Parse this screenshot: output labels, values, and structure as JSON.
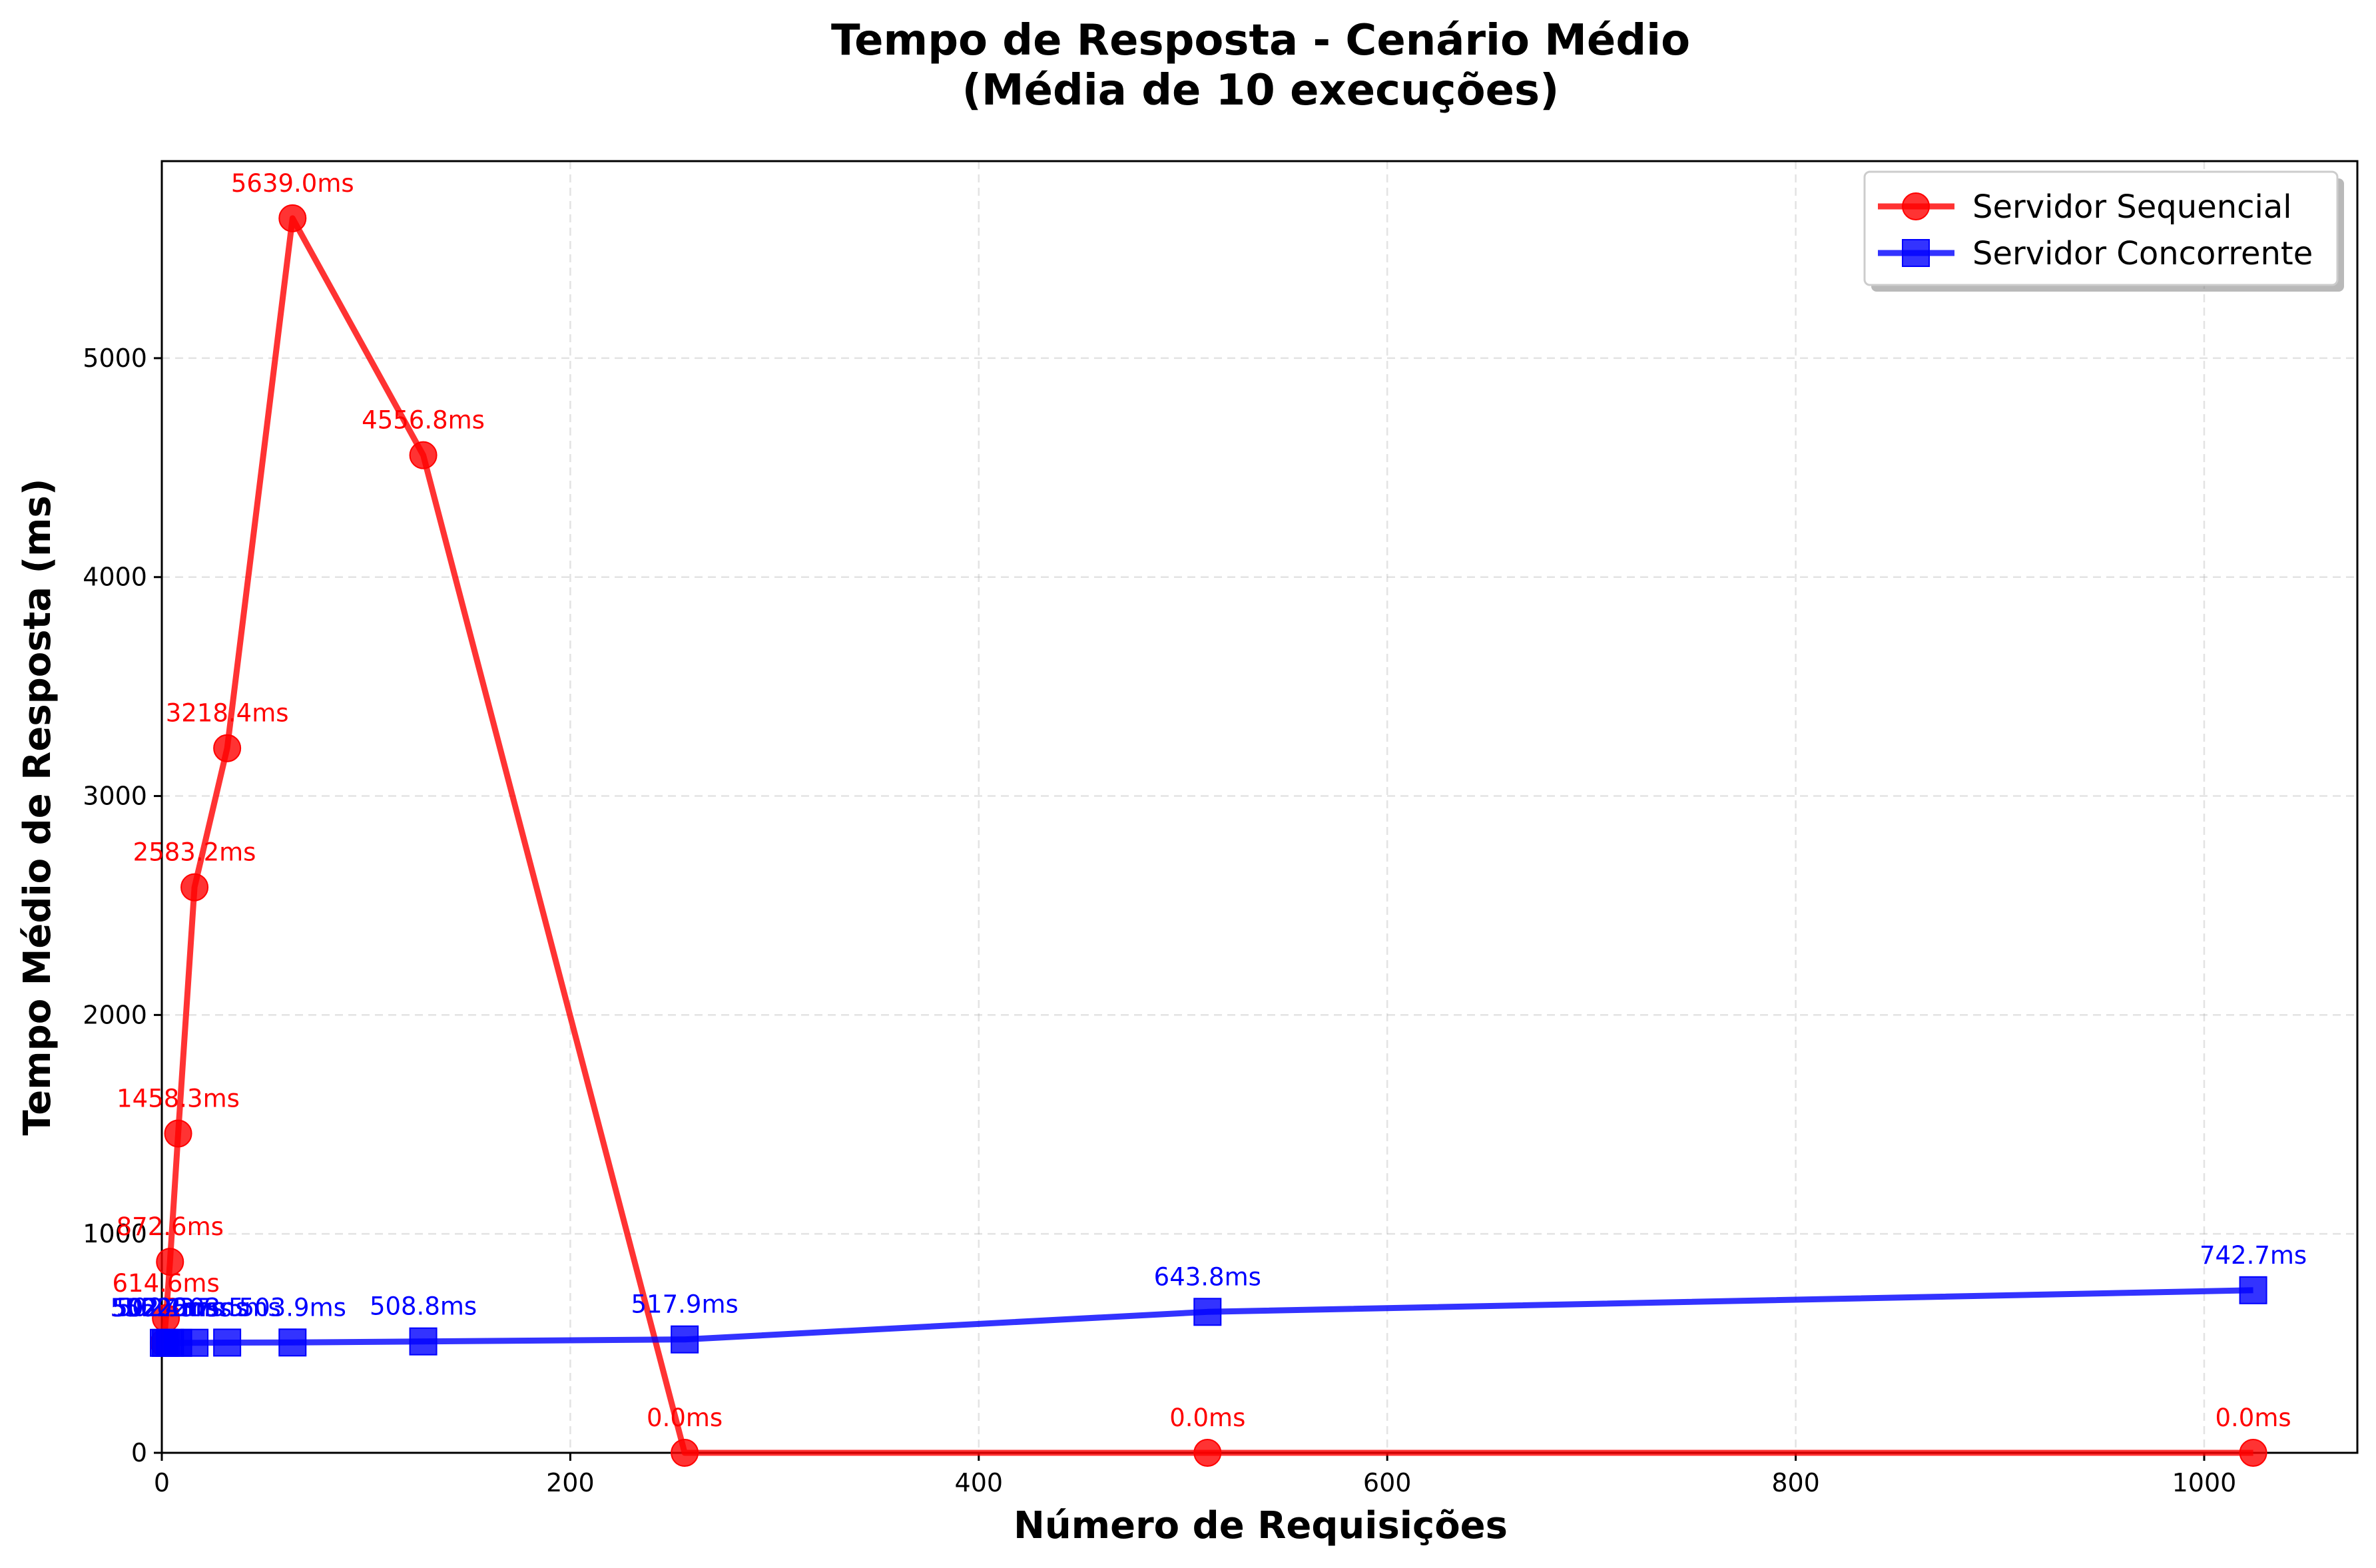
{
  "chart_data": {
    "type": "line",
    "title_line1": "Tempo de Resposta - Cenário Médio",
    "title_line2": "(Média de 10 execuções)",
    "xlabel": "Número de Requisições",
    "ylabel": "Tempo Médio de Resposta (ms)",
    "xlim": [
      0,
      1075
    ],
    "ylim": [
      0,
      5900
    ],
    "xticks": [
      0,
      200,
      400,
      600,
      800,
      1000
    ],
    "yticks": [
      0,
      1000,
      2000,
      3000,
      4000,
      5000
    ],
    "grid": true,
    "legend_position": "top-right",
    "series": [
      {
        "name": "Servidor Sequencial",
        "color": "#ff0000",
        "marker": "circle",
        "x": [
          1,
          2,
          4,
          8,
          16,
          32,
          64,
          128,
          256,
          512,
          1024
        ],
        "y": [
          502.3,
          614.6,
          872.6,
          1458.3,
          2583.2,
          3218.4,
          5639.0,
          4556.8,
          0.0,
          0.0,
          0.0
        ],
        "labels": [
          "502.3ms",
          "614.6ms",
          "872.6ms",
          "1458.3ms",
          "2583.2ms",
          "3218.4ms",
          "5639.0ms",
          "4556.8ms",
          "0.0ms",
          "0.0ms",
          "0.0ms"
        ]
      },
      {
        "name": "Servidor Concorrente",
        "color": "#0000ff",
        "marker": "square",
        "x": [
          1,
          2,
          4,
          8,
          16,
          32,
          64,
          128,
          256,
          512,
          1024
        ],
        "y": [
          502.4,
          502.1,
          502.6,
          502.3,
          502.7,
          503.5,
          503.9,
          508.8,
          517.9,
          643.8,
          742.7
        ],
        "labels": [
          "502.4ms",
          "502.1ms",
          "502.6ms",
          "502.3ms",
          "502.7ms",
          "503.5ms",
          "503.9ms",
          "508.8ms",
          "517.9ms",
          "643.8ms",
          "742.7ms"
        ]
      }
    ]
  }
}
